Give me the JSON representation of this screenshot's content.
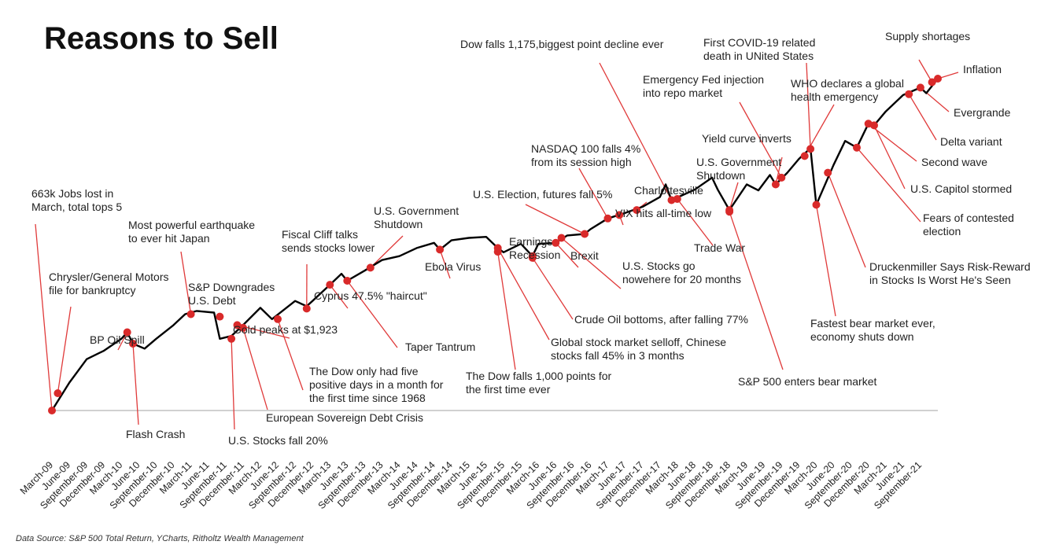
{
  "chart_data": {
    "type": "line",
    "title": "Reasons to Sell",
    "source": "Data Source: S&P 500 Total Return, YCharts, Ritholtz Wealth Management",
    "x_start": "2009-03",
    "x_end": "2021-12",
    "x_tick_labels": [
      "March-09",
      "June-09",
      "September-09",
      "December-09",
      "March-10",
      "June-10",
      "September-10",
      "December-10",
      "March-11",
      "June-11",
      "September-11",
      "December-11",
      "March-12",
      "June-12",
      "September-12",
      "December-12",
      "March-13",
      "June-13",
      "September-13",
      "December-13",
      "March-14",
      "June-14",
      "September-14",
      "December-14",
      "March-15",
      "June-15",
      "September-15",
      "December-15",
      "March-16",
      "June-16",
      "September-16",
      "December-16",
      "March-17",
      "June-17",
      "September-17",
      "December-17",
      "March-18",
      "June-18",
      "September-18",
      "December-18",
      "March-19",
      "June-19",
      "September-19",
      "December-19",
      "March-20",
      "June-20",
      "September-20",
      "December-20",
      "March-21",
      "June-21",
      "September-21"
    ],
    "y_scale": "log",
    "y_baseline": 100,
    "series": [
      {
        "points": [
          [
            "2009-03",
            100
          ],
          [
            "2009-06",
            120
          ],
          [
            "2009-09",
            140
          ],
          [
            "2009-12",
            148
          ],
          [
            "2010-03",
            160
          ],
          [
            "2010-04",
            167
          ],
          [
            "2010-05",
            155
          ],
          [
            "2010-07",
            150
          ],
          [
            "2010-09",
            160
          ],
          [
            "2010-12",
            175
          ],
          [
            "2011-02",
            188
          ],
          [
            "2011-04",
            192
          ],
          [
            "2011-07",
            190
          ],
          [
            "2011-08",
            160
          ],
          [
            "2011-10",
            163
          ],
          [
            "2011-12",
            175
          ],
          [
            "2012-03",
            196
          ],
          [
            "2012-05",
            182
          ],
          [
            "2012-09",
            205
          ],
          [
            "2012-11",
            198
          ],
          [
            "2012-12",
            205
          ],
          [
            "2013-03",
            228
          ],
          [
            "2013-05",
            245
          ],
          [
            "2013-06",
            234
          ],
          [
            "2013-09",
            250
          ],
          [
            "2013-12",
            268
          ],
          [
            "2014-03",
            275
          ],
          [
            "2014-06",
            290
          ],
          [
            "2014-09",
            300
          ],
          [
            "2014-10",
            287
          ],
          [
            "2014-12",
            305
          ],
          [
            "2015-03",
            310
          ],
          [
            "2015-06",
            312
          ],
          [
            "2015-08",
            290
          ],
          [
            "2015-09",
            282
          ],
          [
            "2015-12",
            298
          ],
          [
            "2016-02",
            275
          ],
          [
            "2016-03",
            298
          ],
          [
            "2016-06",
            300
          ],
          [
            "2016-08",
            315
          ],
          [
            "2016-11",
            318
          ],
          [
            "2016-12",
            328
          ],
          [
            "2017-03",
            352
          ],
          [
            "2017-06",
            365
          ],
          [
            "2017-09",
            380
          ],
          [
            "2017-12",
            405
          ],
          [
            "2018-01",
            440
          ],
          [
            "2018-02",
            397
          ],
          [
            "2018-06",
            425
          ],
          [
            "2018-09",
            460
          ],
          [
            "2018-10",
            425
          ],
          [
            "2018-12",
            372
          ],
          [
            "2019-03",
            440
          ],
          [
            "2019-05",
            423
          ],
          [
            "2019-07",
            468
          ],
          [
            "2019-08",
            440
          ],
          [
            "2019-10",
            475
          ],
          [
            "2019-12",
            520
          ],
          [
            "2020-02",
            558
          ],
          [
            "2020-03",
            385
          ],
          [
            "2020-06",
            500
          ],
          [
            "2020-08",
            585
          ],
          [
            "2020-10",
            560
          ],
          [
            "2020-12",
            655
          ],
          [
            "2021-01",
            648
          ],
          [
            "2021-03",
            710
          ],
          [
            "2021-06",
            790
          ],
          [
            "2021-09",
            830
          ],
          [
            "2021-10",
            800
          ],
          [
            "2021-12",
            880
          ]
        ]
      }
    ],
    "annotations": [
      {
        "lines": [
          "663k Jobs lost in",
          "March, total tops 5"
        ],
        "date": "2009-03",
        "value": 100
      },
      {
        "lines": [
          "Chrysler/General Motors",
          "file for bankruptcy"
        ],
        "date": "2009-04",
        "value": 112
      },
      {
        "lines": [
          "BP Oil Spill"
        ],
        "date": "2010-04",
        "value": 167
      },
      {
        "lines": [
          "Flash Crash"
        ],
        "date": "2010-05",
        "value": 155
      },
      {
        "lines": [
          "Most powerful earthquake",
          "to ever hit Japan"
        ],
        "date": "2011-03",
        "value": 188
      },
      {
        "lines": [
          "S&P Downgrades",
          "U.S. Debt"
        ],
        "date": "2011-08",
        "value": 185
      },
      {
        "lines": [
          "U.S. Stocks fall 20%"
        ],
        "date": "2011-10",
        "value": 160
      },
      {
        "lines": [
          "Gold peaks at $1,923"
        ],
        "date": "2011-11",
        "value": 175
      },
      {
        "lines": [
          "European Sovereign Debt Crisis"
        ],
        "date": "2011-12",
        "value": 172
      },
      {
        "lines": [
          "Fiscal Cliff talks",
          "sends stocks lower"
        ],
        "date": "2012-11",
        "value": 195
      },
      {
        "lines": [
          "The Dow only had five",
          "positive days in a month for",
          "the first time since 1968"
        ],
        "date": "2012-06",
        "value": 182
      },
      {
        "lines": [
          "Cyprus 47.5% \"haircut\""
        ],
        "date": "2013-03",
        "value": 228
      },
      {
        "lines": [
          "Taper Tantrum"
        ],
        "date": "2013-06",
        "value": 234
      },
      {
        "lines": [
          "U.S. Government",
          "Shutdown"
        ],
        "date": "2013-10",
        "value": 255
      },
      {
        "lines": [
          "Ebola Virus"
        ],
        "date": "2014-10",
        "value": 287
      },
      {
        "lines": [
          "The Dow falls 1,000 points for",
          "the first time ever"
        ],
        "date": "2015-08",
        "value": 283
      },
      {
        "lines": [
          "Global stock market selloff, Chinese",
          "stocks fall 45% in 3 months"
        ],
        "date": "2015-08",
        "value": 290
      },
      {
        "lines": [
          "Earnings",
          "Recession"
        ],
        "date": "2016-02",
        "value": 275
      },
      {
        "lines": [
          "Crude Oil bottoms, after falling 77%"
        ],
        "date": "2016-02",
        "value": 272
      },
      {
        "lines": [
          "Brexit"
        ],
        "date": "2016-06",
        "value": 300
      },
      {
        "lines": [
          "U.S. Stocks go",
          "nowehere for 20 months"
        ],
        "date": "2016-07",
        "value": 310
      },
      {
        "lines": [
          "U.S. Election, futures fall 5%"
        ],
        "date": "2016-11",
        "value": 318
      },
      {
        "lines": [
          "NASDAQ 100 falls 4%",
          "from its  session high"
        ],
        "date": "2017-03",
        "value": 352
      },
      {
        "lines": [
          "VIX hits all-time low"
        ],
        "date": "2017-05",
        "value": 360
      },
      {
        "lines": [
          "Charlottesville"
        ],
        "date": "2017-08",
        "value": 372
      },
      {
        "lines": [
          "Dow falls 1,175,biggest point decline ever"
        ],
        "date": "2018-02",
        "value": 397
      },
      {
        "lines": [
          "Trade War"
        ],
        "date": "2018-03",
        "value": 400
      },
      {
        "lines": [
          "U.S. Government",
          "Shutdown"
        ],
        "date": "2018-12",
        "value": 372
      },
      {
        "lines": [
          "S&P 500 enters bear market"
        ],
        "date": "2018-12",
        "value": 368
      },
      {
        "lines": [
          "Yield curve inverts"
        ],
        "date": "2019-08",
        "value": 440
      },
      {
        "lines": [
          "Emergency Fed injection",
          "into repo market"
        ],
        "date": "2019-09",
        "value": 460
      },
      {
        "lines": [
          "First COVID-19 related",
          "death in UNited States"
        ],
        "date": "2020-02",
        "value": 555
      },
      {
        "lines": [
          "WHO declares a global",
          "health emergency"
        ],
        "date": "2020-01",
        "value": 530
      },
      {
        "lines": [
          "Fastest bear market ever,",
          "economy shuts down"
        ],
        "date": "2020-03",
        "value": 385
      },
      {
        "lines": [
          "Druckenmiller Says Risk-Reward",
          "in Stocks Is Worst He's Seen"
        ],
        "date": "2020-05",
        "value": 475
      },
      {
        "lines": [
          "Fears of contested",
          "election"
        ],
        "date": "2020-10",
        "value": 560
      },
      {
        "lines": [
          "U.S. Capitol stormed"
        ],
        "date": "2021-01",
        "value": 648
      },
      {
        "lines": [
          "Second wave"
        ],
        "date": "2020-12",
        "value": 655
      },
      {
        "lines": [
          "Delta variant"
        ],
        "date": "2021-07",
        "value": 795
      },
      {
        "lines": [
          "Evergrande"
        ],
        "date": "2021-09",
        "value": 830
      },
      {
        "lines": [
          "Supply shortages"
        ],
        "date": "2021-11",
        "value": 860
      },
      {
        "lines": [
          "Inflation"
        ],
        "date": "2021-12",
        "value": 880
      }
    ]
  }
}
